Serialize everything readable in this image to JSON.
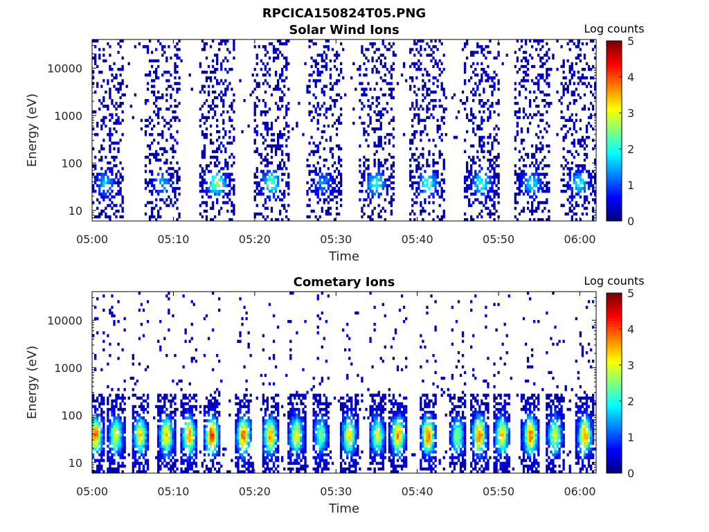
{
  "figure_title": "RPCICA150824T05.PNG",
  "colorbar_title": "Log counts",
  "colorbar_ticks": [
    "0",
    "1",
    "2",
    "3",
    "4",
    "5"
  ],
  "chart_data": [
    {
      "type": "heatmap",
      "title": "Solar Wind Ions",
      "xlabel": "Time",
      "ylabel": "Energy (eV)",
      "x_ticks": [
        "05:00",
        "05:10",
        "05:20",
        "05:30",
        "05:40",
        "05:50",
        "06:00"
      ],
      "y_ticks": [
        "10",
        "100",
        "1000",
        "10000"
      ],
      "y_scale": "log",
      "ylim": [
        6,
        40000
      ],
      "xlim": [
        "05:00",
        "06:02"
      ],
      "clim": [
        0,
        5
      ],
      "colormap": "jet",
      "bursts_minutes": [
        1.5,
        8.5,
        15.2,
        21.9,
        28.3,
        34.8,
        41.2,
        47.8,
        54.0,
        59.8
      ],
      "peak_energy_ev": 35,
      "peak_log_counts": [
        1.4,
        1.2,
        2.3,
        2.1,
        1.1,
        1.8,
        1.9,
        1.8,
        1.6,
        1.7
      ]
    },
    {
      "type": "heatmap",
      "title": "Cometary Ions",
      "xlabel": "Time",
      "ylabel": "Energy (eV)",
      "x_ticks": [
        "05:00",
        "05:10",
        "05:20",
        "05:30",
        "05:40",
        "05:50",
        "06:00"
      ],
      "y_ticks": [
        "10",
        "100",
        "1000",
        "10000"
      ],
      "y_scale": "log",
      "ylim": [
        6,
        40000
      ],
      "xlim": [
        "05:00",
        "06:02"
      ],
      "clim": [
        0,
        5
      ],
      "colormap": "jet",
      "bursts_minutes": [
        0.3,
        2.8,
        5.8,
        9.0,
        11.8,
        14.6,
        18.5,
        21.8,
        25.0,
        28.0,
        31.5,
        35.0,
        37.5,
        41.2,
        44.8,
        47.5,
        50.3,
        53.8,
        56.8,
        60.5
      ],
      "peak_energy_ev": 35,
      "peak_log_counts": [
        3.6,
        2.8,
        3.0,
        3.2,
        3.4,
        3.9,
        3.6,
        3.3,
        2.9,
        2.2,
        3.0,
        2.6,
        3.4,
        3.6,
        2.3,
        3.7,
        3.1,
        3.6,
        2.8,
        3.5
      ]
    }
  ]
}
